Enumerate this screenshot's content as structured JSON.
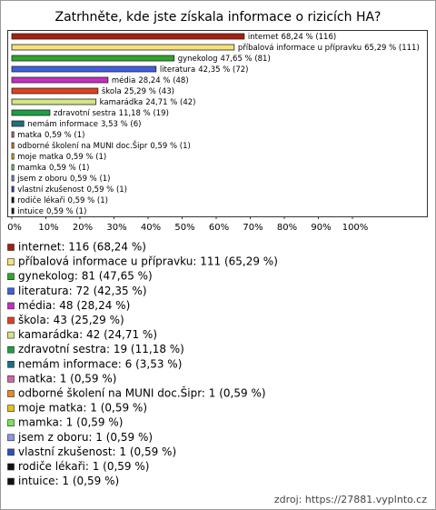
{
  "chart_data": {
    "type": "bar",
    "orientation": "horizontal",
    "title": "Zatrhněte, kde jste získala informace o rizicích HA?",
    "categories": [
      "internet",
      "příbalová informace u přípravku",
      "gynekolog",
      "literatura",
      "média",
      "škola",
      "kamarádka",
      "zdravotní sestra",
      "nemám informace",
      "matka",
      "odborné školení na MUNI doc.Šipr",
      "moje matka",
      "mamka",
      "jsem z oboru",
      "vlastní zkušenost",
      "rodiče lékaři",
      "intuice"
    ],
    "values": [
      68.24,
      65.29,
      47.65,
      42.35,
      28.24,
      25.29,
      24.71,
      11.18,
      3.53,
      0.59,
      0.59,
      0.59,
      0.59,
      0.59,
      0.59,
      0.59,
      0.59
    ],
    "value_labels": [
      "68,24 % (116)",
      "65,29 % (111)",
      "47,65 % (81)",
      "42,35 % (72)",
      "28,24 % (48)",
      "25,29 % (43)",
      "24,71 % (42)",
      "11,18 % (19)",
      "3,53 % (6)",
      "0,59 % (1)",
      "0,59 % (1)",
      "0,59 % (1)",
      "0,59 % (1)",
      "0,59 % (1)",
      "0,59 % (1)",
      "0,59 % (1)",
      "0,59 % (1)"
    ],
    "colors": [
      "#a4200f",
      "#f6e27a",
      "#2fa52f",
      "#3f5fe0",
      "#c22fc2",
      "#e0401e",
      "#d4e486",
      "#1f9f45",
      "#1f6f80",
      "#d462a6",
      "#e88a1e",
      "#e3c21e",
      "#7fe05f",
      "#8a96e6",
      "#2e4fbf",
      "#111111",
      "#111111"
    ],
    "legend": [
      "internet: 116 (68,24 %)",
      "příbalová informace u přípravku: 111 (65,29 %)",
      "gynekolog: 81 (47,65 %)",
      "literatura: 72 (42,35 %)",
      "média: 48 (28,24 %)",
      "škola: 43 (25,29 %)",
      "kamarádka: 42 (24,71 %)",
      "zdravotní sestra: 19 (11,18 %)",
      "nemám informace: 6 (3,53 %)",
      "matka: 1 (0,59 %)",
      "odborné školení na MUNI doc.Šipr: 1 (0,59 %)",
      "moje matka: 1 (0,59 %)",
      "mamka: 1 (0,59 %)",
      "jsem z oboru: 1 (0,59 %)",
      "vlastní zkušenost: 1 (0,59 %)",
      "rodiče lékaři: 1 (0,59 %)",
      "intuice: 1 (0,59 %)"
    ],
    "xlim": [
      0,
      100
    ],
    "xticks": [
      {
        "value": 0,
        "label": "0%"
      },
      {
        "value": 10,
        "label": "10%"
      },
      {
        "value": 20,
        "label": "20%"
      },
      {
        "value": 30,
        "label": "30%"
      },
      {
        "value": 40,
        "label": "40%"
      },
      {
        "value": 50,
        "label": "50%"
      },
      {
        "value": 60,
        "label": "60%"
      },
      {
        "value": 70,
        "label": "70%"
      },
      {
        "value": 80,
        "label": "80%"
      },
      {
        "value": 90,
        "label": "90%"
      },
      {
        "value": 100,
        "label": "100%"
      }
    ],
    "source": "zdroj: https://27881.vyplnto.cz"
  }
}
